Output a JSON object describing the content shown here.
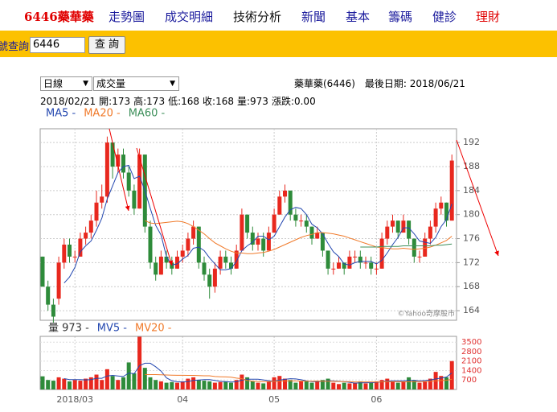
{
  "page": {
    "nav": [
      {
        "text": "6446藥華藥",
        "color": "#e00000"
      },
      {
        "text": "走勢圖",
        "color": "#1a1a9c"
      },
      {
        "text": "成交明細",
        "color": "#1a1a9c"
      },
      {
        "text": "技術分析",
        "color": "#111111"
      },
      {
        "text": "新聞",
        "color": "#1a1a9c"
      },
      {
        "text": "基本",
        "color": "#1a1a9c"
      },
      {
        "text": "籌碼",
        "color": "#1a1a9c"
      },
      {
        "text": "健診",
        "color": "#1a1a9c"
      },
      {
        "text": "理財",
        "color": "#e00000"
      }
    ],
    "search_label": "號查詢",
    "search_value": "6446",
    "search_button": "查 詢",
    "select_period": "日線",
    "select_indicator": "成交量",
    "stock_line": "藥華藥(6446)　最後日期: 2018/06/21",
    "info": {
      "date": "2018/02/21",
      "fields": [
        {
          "label": "開:",
          "value": "173"
        },
        {
          "label": "高:",
          "value": "173"
        },
        {
          "label": "低:",
          "value": "168"
        },
        {
          "label": "收:",
          "value": "168"
        },
        {
          "label": "量:",
          "value": "973"
        },
        {
          "label": "漲跌:",
          "value": "0.00"
        }
      ]
    },
    "credit": "©Yahoo奇摩股市"
  },
  "chart_data": [
    {
      "type": "candlestick",
      "categories": [
        null,
        null,
        null,
        null,
        null,
        null,
        "2018/03",
        null,
        null,
        null,
        null,
        null,
        null,
        null,
        null,
        null,
        null,
        null,
        null,
        null,
        null,
        null,
        null,
        null,
        null,
        null,
        "04",
        null,
        null,
        null,
        null,
        null,
        null,
        null,
        null,
        null,
        null,
        null,
        null,
        null,
        null,
        null,
        null,
        "05",
        null,
        null,
        null,
        null,
        null,
        null,
        null,
        null,
        null,
        null,
        null,
        null,
        null,
        null,
        null,
        null,
        null,
        null,
        "06",
        null,
        null,
        null,
        null,
        null,
        null,
        null,
        null,
        null,
        null,
        null,
        null,
        null,
        null
      ],
      "open": [
        173,
        168,
        165,
        166,
        172,
        175,
        173,
        173,
        176,
        177,
        179,
        182,
        183,
        192,
        188,
        190,
        187,
        184,
        181,
        190,
        178,
        172,
        170,
        173,
        172,
        171,
        173,
        174,
        176,
        178,
        172,
        170,
        168,
        171,
        173,
        172,
        171,
        174,
        180,
        177,
        175,
        176,
        174,
        177,
        180,
        183,
        184,
        180,
        179,
        179,
        178,
        176,
        177,
        174,
        171,
        171,
        172,
        171,
        173,
        173,
        172,
        172,
        171,
        171,
        176,
        178,
        179,
        177,
        179,
        176,
        173,
        173,
        176,
        178,
        181,
        182,
        179
      ],
      "high": [
        173,
        169,
        166,
        173,
        176,
        176,
        174,
        177,
        178,
        180,
        184,
        185,
        193,
        192,
        191,
        191,
        188,
        185,
        191,
        190,
        179,
        173,
        174,
        174,
        173,
        174,
        175,
        177,
        179,
        178,
        173,
        171,
        172,
        174,
        174,
        173,
        175,
        181,
        180,
        178,
        177,
        177,
        178,
        181,
        184,
        185,
        184,
        181,
        180,
        180,
        178,
        178,
        177,
        174,
        172,
        173,
        172,
        174,
        174,
        174,
        173,
        173,
        172,
        177,
        179,
        180,
        179,
        180,
        179,
        176,
        174,
        177,
        179,
        182,
        183,
        182,
        190
      ],
      "low": [
        168,
        164,
        162,
        165,
        171,
        172,
        172,
        173,
        175,
        176,
        178,
        181,
        182,
        186,
        187,
        186,
        183,
        180,
        181,
        177,
        171,
        169,
        170,
        171,
        170,
        171,
        172,
        173,
        175,
        171,
        169,
        166,
        167,
        170,
        171,
        170,
        171,
        174,
        176,
        174,
        174,
        173,
        174,
        177,
        180,
        182,
        179,
        178,
        178,
        177,
        175,
        176,
        173,
        170,
        170,
        171,
        170,
        171,
        172,
        171,
        171,
        170,
        170,
        171,
        175,
        177,
        176,
        177,
        175,
        172,
        172,
        173,
        175,
        177,
        180,
        178,
        179
      ],
      "close": [
        168,
        165,
        163,
        172,
        175,
        173,
        173,
        176,
        177,
        179,
        182,
        183,
        192,
        188,
        190,
        187,
        184,
        181,
        190,
        178,
        172,
        170,
        173,
        172,
        171,
        173,
        174,
        176,
        178,
        172,
        170,
        168,
        171,
        173,
        172,
        171,
        174,
        180,
        177,
        175,
        176,
        174,
        177,
        180,
        183,
        184,
        180,
        179,
        179,
        178,
        176,
        177,
        174,
        171,
        171,
        172,
        171,
        173,
        173,
        172,
        172,
        171,
        171,
        176,
        178,
        179,
        177,
        179,
        176,
        173,
        173,
        176,
        178,
        181,
        182,
        179,
        189
      ],
      "up_color": "#e8281e",
      "down_color": "#2e8b3a",
      "series": [
        {
          "name": "MA5 -",
          "color": "#2448b0",
          "values": [
            null,
            null,
            null,
            null,
            168.6,
            169.6,
            171.2,
            173.8,
            174.8,
            175.6,
            177.4,
            179.4,
            182.6,
            184.8,
            187,
            188,
            188.2,
            186,
            186.4,
            184,
            181,
            178.2,
            176.6,
            173,
            171.6,
            171.8,
            172.6,
            173.2,
            174.4,
            174.6,
            174,
            172.8,
            171.8,
            170.8,
            170.8,
            171,
            172.2,
            174,
            174.8,
            175.4,
            176.4,
            176.4,
            175.8,
            176.4,
            178,
            179.6,
            180.8,
            181.2,
            181,
            180,
            178.4,
            177.8,
            176.8,
            175.2,
            173.8,
            173,
            171.8,
            171.6,
            172,
            172.2,
            172.2,
            172.2,
            171.8,
            172.4,
            173.6,
            175,
            176.2,
            177.8,
            177.8,
            176.8,
            175.6,
            175.4,
            175.2,
            176.2,
            178,
            179.2,
            181.8
          ]
        },
        {
          "name": "MA20 -",
          "color": "#f07a2a",
          "values": [
            null,
            null,
            null,
            null,
            null,
            null,
            null,
            null,
            null,
            null,
            null,
            null,
            null,
            null,
            null,
            null,
            null,
            null,
            null,
            179,
            178.6,
            178.5,
            178.6,
            178.7,
            178.8,
            178.9,
            178.8,
            178.5,
            178,
            177.4,
            176.8,
            176,
            175.3,
            174.8,
            174.3,
            173.9,
            173.6,
            173.6,
            173.5,
            173.5,
            173.6,
            173.7,
            173.9,
            174.2,
            174.6,
            175,
            175.4,
            175.8,
            176.2,
            176.5,
            176.7,
            177,
            177,
            176.9,
            176.8,
            176.6,
            176.4,
            176.1,
            175.8,
            175.5,
            175.2,
            174.9,
            174.6,
            174.5,
            174.4,
            174.3,
            174.3,
            174.4,
            174.3,
            174.2,
            174.3,
            174.4,
            174.6,
            174.9,
            175.3,
            175.7,
            176.4
          ]
        },
        {
          "name": "MA60 -",
          "color": "#3d8f5a",
          "values": [
            null,
            null,
            null,
            null,
            null,
            null,
            null,
            null,
            null,
            null,
            null,
            null,
            null,
            null,
            null,
            null,
            null,
            null,
            null,
            null,
            null,
            null,
            null,
            null,
            null,
            null,
            null,
            null,
            null,
            null,
            null,
            null,
            null,
            null,
            null,
            null,
            null,
            null,
            null,
            null,
            null,
            null,
            null,
            null,
            null,
            null,
            null,
            null,
            null,
            null,
            null,
            null,
            null,
            null,
            null,
            null,
            null,
            null,
            null,
            174.6,
            174.6,
            174.6,
            174.6,
            174.7,
            174.7,
            174.7,
            174.7,
            174.8,
            174.8,
            174.8,
            174.8,
            174.8,
            174.8,
            174.9,
            174.9,
            175,
            175.1
          ]
        }
      ],
      "ylim": [
        162.4,
        194.3
      ],
      "yticks": [
        164,
        168,
        172,
        176,
        180,
        184,
        188,
        192
      ],
      "grid": true
    },
    {
      "type": "volume",
      "legend_label": "量 973 -",
      "values": [
        973,
        700,
        650,
        900,
        800,
        600,
        700,
        650,
        800,
        900,
        1100,
        700,
        1500,
        1000,
        700,
        900,
        2000,
        1200,
        3900,
        1600,
        900,
        700,
        600,
        500,
        550,
        500,
        600,
        800,
        900,
        700,
        650,
        600,
        500,
        550,
        600,
        500,
        700,
        1100,
        900,
        600,
        500,
        450,
        600,
        900,
        1000,
        800,
        700,
        500,
        600,
        600,
        500,
        650,
        700,
        800,
        500,
        400,
        500,
        450,
        500,
        600,
        450,
        500,
        600,
        700,
        800,
        600,
        500,
        600,
        900,
        700,
        500,
        600,
        800,
        1300,
        1000,
        900,
        2100
      ],
      "series": [
        {
          "name": "MV5 -",
          "color": "#2448b0",
          "values": [
            null,
            null,
            null,
            null,
            805,
            730,
            730,
            730,
            710,
            730,
            830,
            830,
            1000,
            1040,
            1000,
            960,
            1220,
            1160,
            1760,
            1940,
            1940,
            1680,
            1360,
            860,
            650,
            570,
            550,
            590,
            670,
            700,
            730,
            730,
            670,
            600,
            580,
            550,
            570,
            690,
            760,
            760,
            760,
            710,
            650,
            610,
            690,
            750,
            800,
            780,
            720,
            640,
            580,
            570,
            610,
            650,
            630,
            610,
            580,
            530,
            470,
            490,
            500,
            500,
            530,
            570,
            610,
            640,
            640,
            640,
            680,
            660,
            640,
            660,
            700,
            780,
            840,
            920,
            1220
          ]
        },
        {
          "name": "MV20 -",
          "color": "#f07a2a",
          "values": [
            null,
            null,
            null,
            null,
            null,
            null,
            null,
            null,
            null,
            null,
            null,
            null,
            null,
            null,
            null,
            null,
            null,
            null,
            null,
            1100,
            1100,
            1100,
            1090,
            1070,
            1060,
            1050,
            1050,
            1040,
            1040,
            1030,
            1010,
            1010,
            960,
            940,
            930,
            910,
            840,
            800,
            660,
            610,
            590,
            580,
            580,
            600,
            620,
            630,
            640,
            630,
            620,
            620,
            610,
            620,
            610,
            610,
            600,
            590,
            580,
            580,
            560,
            560,
            560,
            560,
            550,
            560,
            570,
            570,
            570,
            560,
            570,
            580,
            580,
            590,
            600,
            640,
            660,
            680,
            760
          ]
        }
      ],
      "ylim": [
        0,
        3930
      ],
      "yticks": [
        700,
        1400,
        2100,
        2800,
        3500
      ],
      "tick_color": "#e03030",
      "grid": true
    }
  ]
}
